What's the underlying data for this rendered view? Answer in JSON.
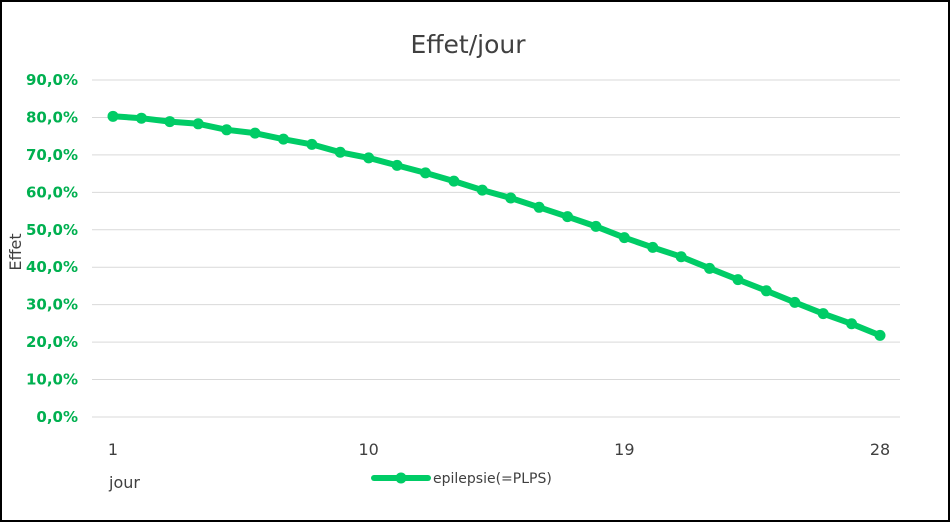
{
  "chart_data": {
    "type": "line",
    "title": "Effet/jour",
    "xlabel": "jour",
    "ylabel": "Effet",
    "ylim": [
      0,
      0.9
    ],
    "yticks": [
      0,
      0.1,
      0.2,
      0.3,
      0.4,
      0.5,
      0.6,
      0.7,
      0.8,
      0.9
    ],
    "ytick_labels": [
      "0,0%",
      "10,0%",
      "20,0%",
      "30,0%",
      "40,0%",
      "50,0%",
      "60,0%",
      "70,0%",
      "80,0%",
      "90,0%"
    ],
    "xtick_values": [
      1,
      10,
      19,
      28
    ],
    "xtick_labels": [
      "1",
      "10",
      "19",
      "28"
    ],
    "xlim": [
      1,
      28
    ],
    "grid": true,
    "legend_position": "bottom",
    "colors": {
      "series": "#00CC66",
      "ticks": "#00B050",
      "grid": "#D9D9D9"
    },
    "series": [
      {
        "name": "epilepsie(=PLPS)",
        "x": [
          1,
          2,
          3,
          4,
          5,
          6,
          7,
          8,
          9,
          10,
          11,
          12,
          13,
          14,
          15,
          16,
          17,
          18,
          19,
          20,
          21,
          22,
          23,
          24,
          25,
          26,
          27,
          28
        ],
        "values": [
          0.803,
          0.798,
          0.789,
          0.783,
          0.767,
          0.758,
          0.742,
          0.728,
          0.707,
          0.692,
          0.672,
          0.652,
          0.63,
          0.606,
          0.585,
          0.56,
          0.535,
          0.509,
          0.479,
          0.453,
          0.428,
          0.397,
          0.367,
          0.337,
          0.306,
          0.276,
          0.249,
          0.218
        ]
      }
    ]
  }
}
